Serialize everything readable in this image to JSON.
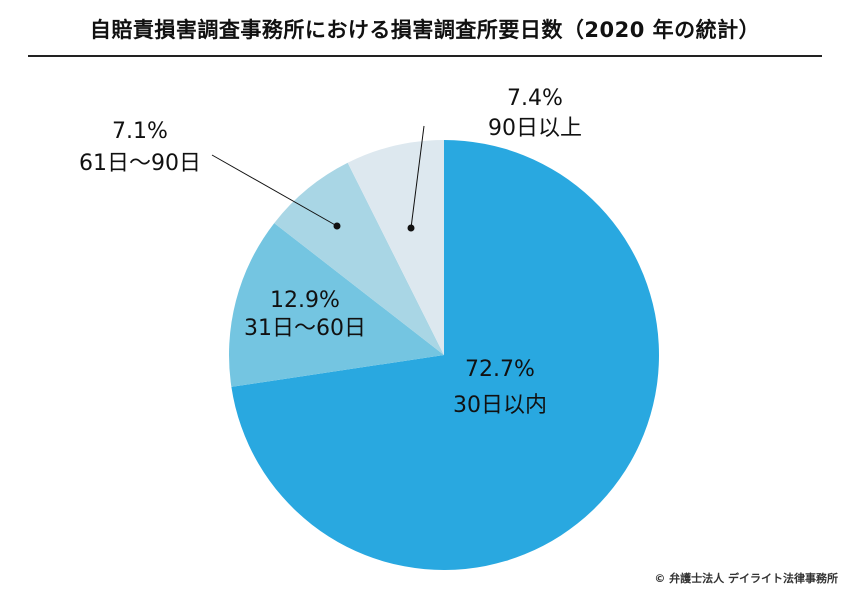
{
  "chart_data": {
    "type": "pie",
    "title": "自賠責損害調査事務所における損害調査所要日数（2020 年の統計）",
    "slices": [
      {
        "label": "30日以内",
        "value": 72.7,
        "value_label": "72.7%",
        "color": "#29a8e0"
      },
      {
        "label": "31日〜60日",
        "value": 12.9,
        "value_label": "12.9%",
        "color": "#74c5e1"
      },
      {
        "label": "61日〜90日",
        "value": 7.1,
        "value_label": "7.1%",
        "color": "#a9d6e5"
      },
      {
        "label": "90日以上",
        "value": 7.4,
        "value_label": "7.4%",
        "color": "#dde8ef"
      }
    ],
    "start": "12 o'clock",
    "direction": "clockwise"
  },
  "credit": "© 弁護士法人 デイライト法律事務所"
}
